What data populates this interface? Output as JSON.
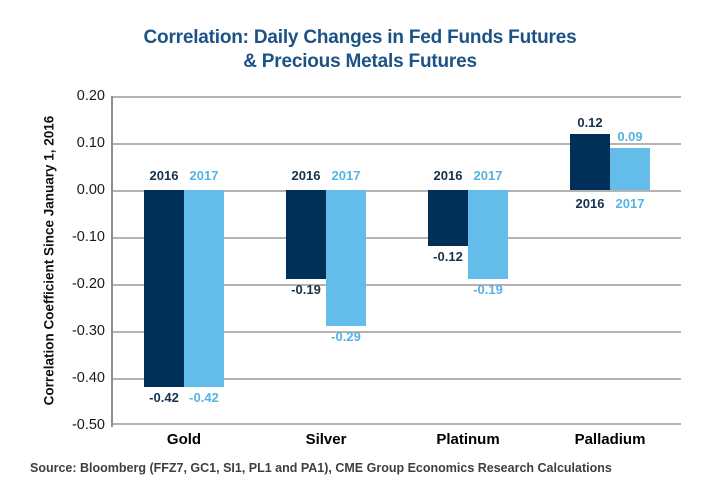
{
  "title": {
    "line1": "Correlation: Daily Changes in Fed Funds Futures",
    "line2": "& Precious Metals Futures"
  },
  "source": "Source: Bloomberg (FFZ7, GC1, SI1, PL1 and PA1), CME Group Economics Research Calculations",
  "colors": {
    "series_2016_bar": "#003057",
    "series_2017_bar": "#63bce9",
    "series_2016_text": "#16324f",
    "series_2017_text": "#56b3e4",
    "title_text": "#1b5386",
    "gridline": "#b3b3b3",
    "axis_line": "#8f8f8f"
  },
  "chart_data": {
    "type": "bar",
    "title": "Correlation: Daily Changes in Fed Funds Futures & Precious Metals Futures",
    "categories": [
      "Gold",
      "Silver",
      "Platinum",
      "Palladium"
    ],
    "series": [
      {
        "name": "2016",
        "values": [
          -0.42,
          -0.19,
          -0.12,
          0.12
        ]
      },
      {
        "name": "2017",
        "values": [
          -0.42,
          -0.29,
          -0.19,
          0.09
        ]
      }
    ],
    "xlabel": "",
    "ylabel": "Correlation Coefficient Since January 1, 2016",
    "ylim": [
      -0.5,
      0.2
    ],
    "ytick_step": 0.1,
    "ytick_labels": [
      "0.20",
      "0.10",
      "0.00",
      "-0.10",
      "-0.20",
      "-0.30",
      "-0.40",
      "-0.50"
    ],
    "grid": true,
    "value_labels": true,
    "legend_position": "per-group"
  }
}
